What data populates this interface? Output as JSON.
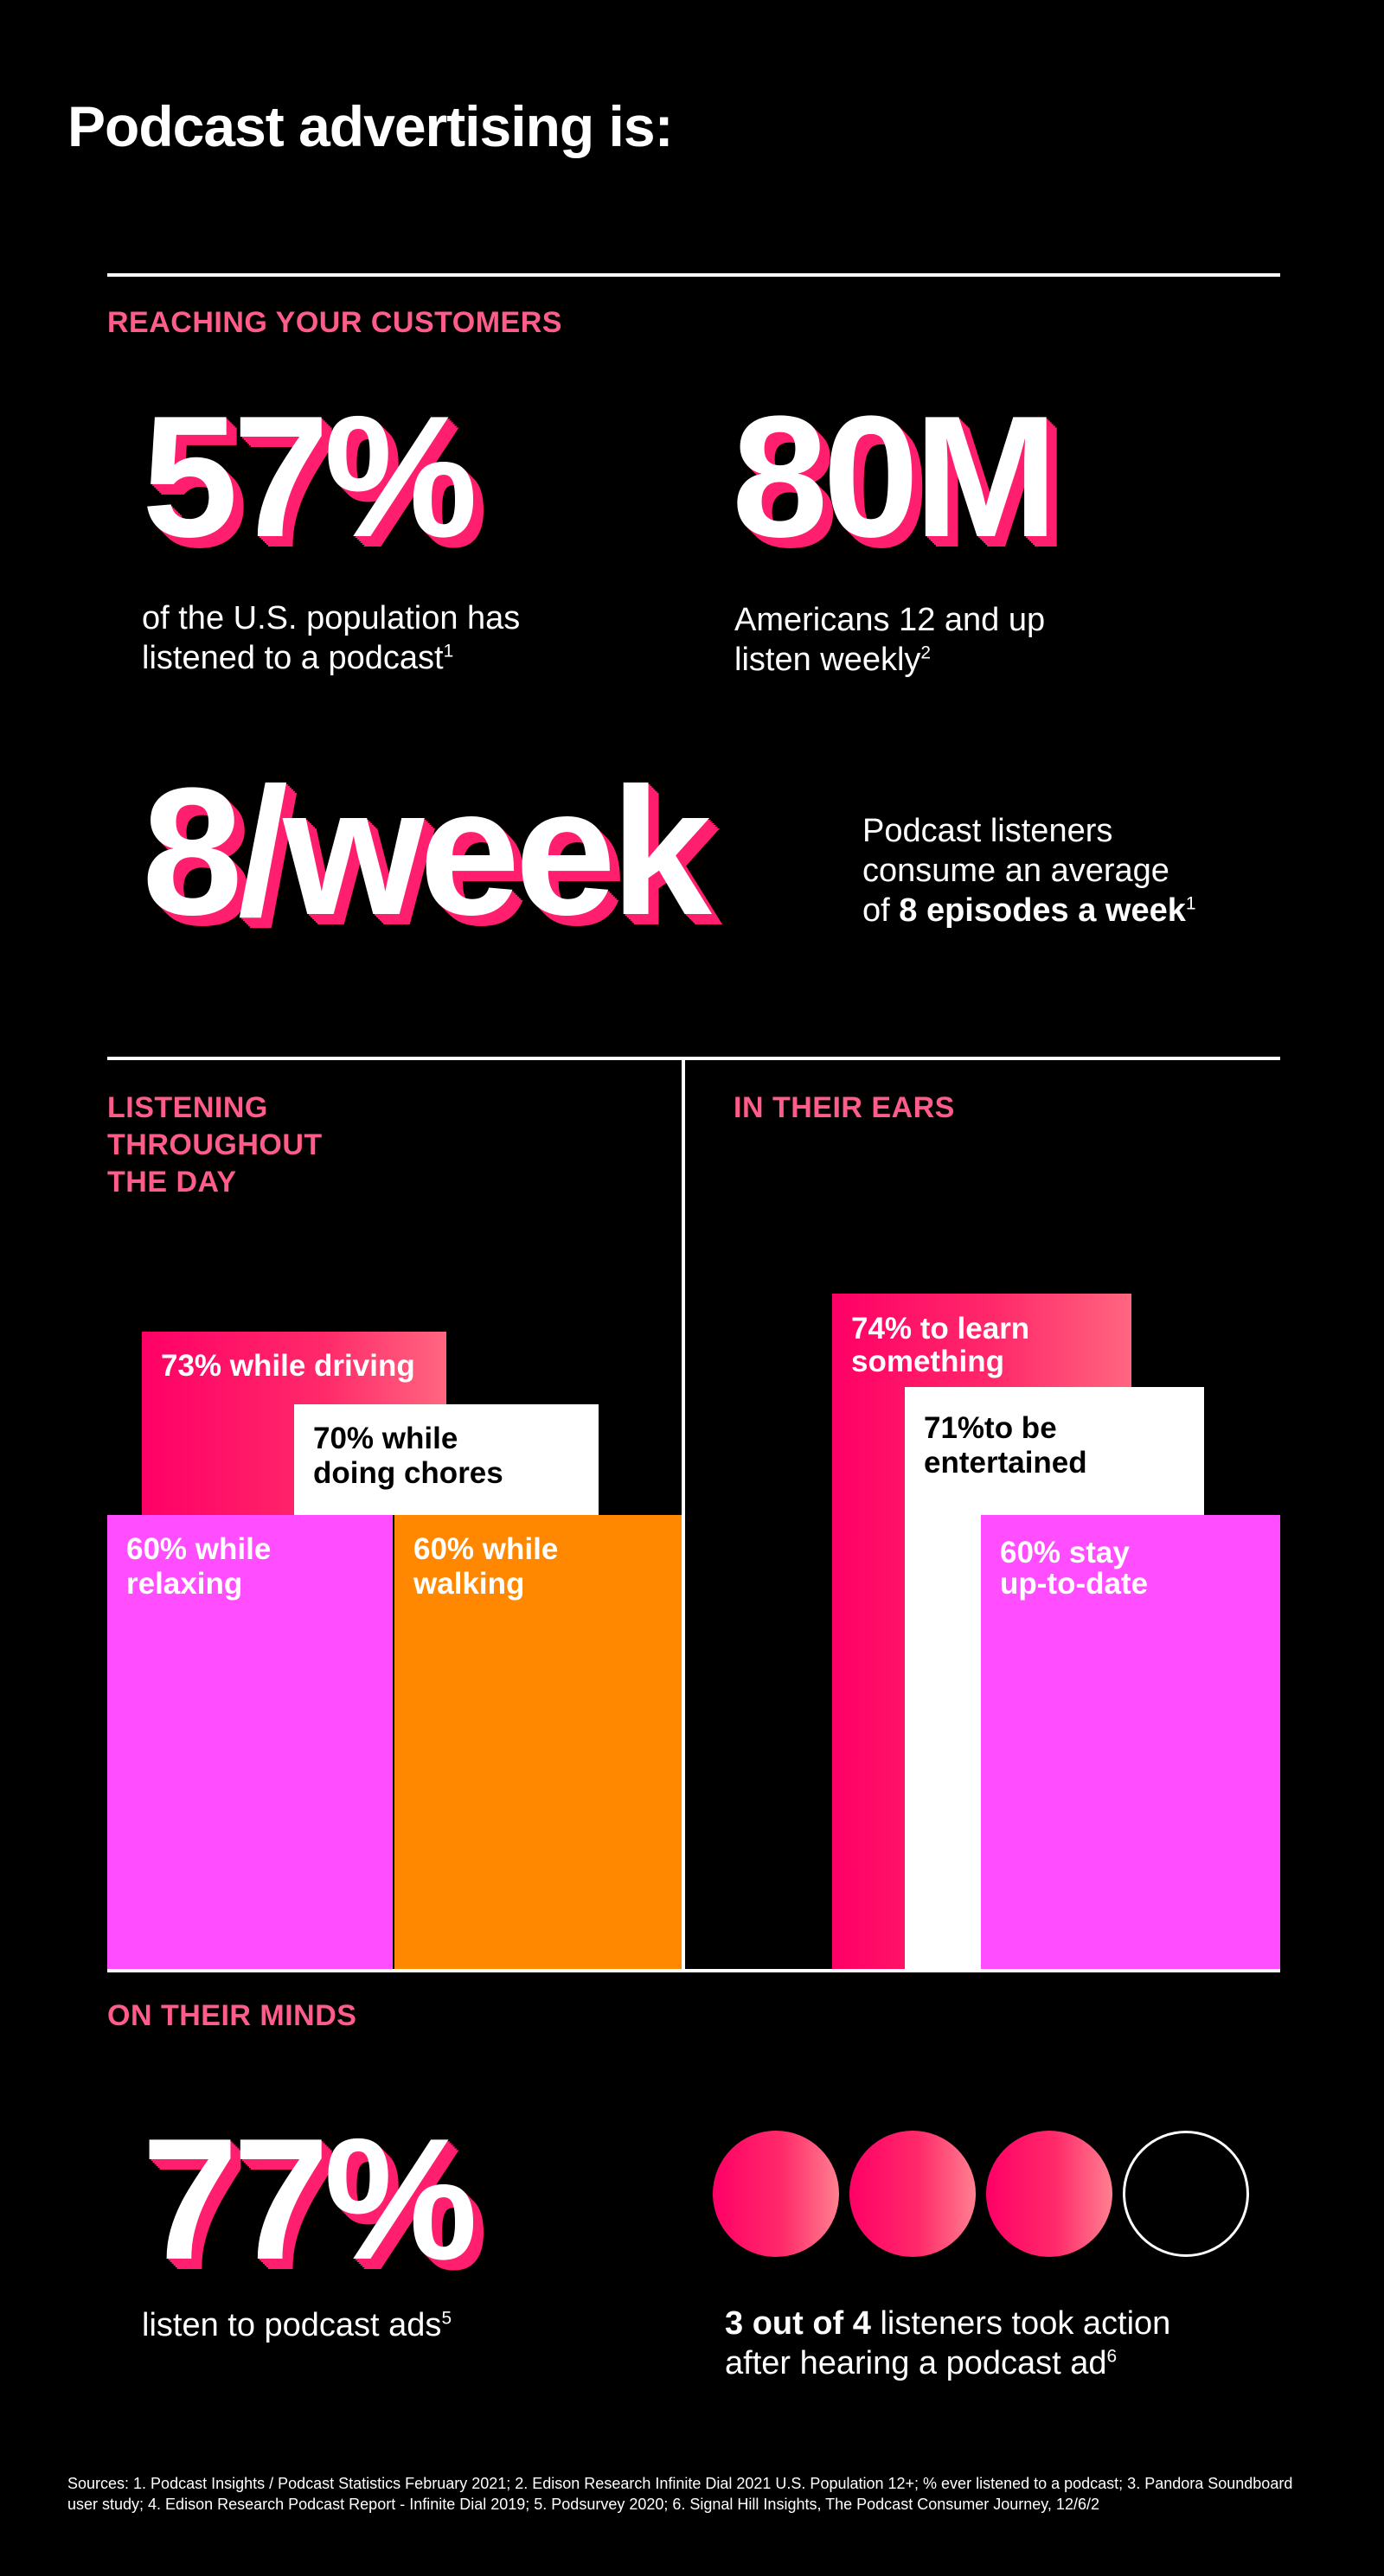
{
  "header": {
    "title": "Podcast advertising is:"
  },
  "reach": {
    "label": "REACHING YOUR CUSTOMERS",
    "stat1": {
      "value": "57%",
      "line1": "of the U.S. population has",
      "line2": "listened to a podcast",
      "sup": "1"
    },
    "stat2": {
      "value": "80M",
      "line1": "Americans 12 and up",
      "line2": "listen weekly",
      "sup": "2"
    },
    "stat3": {
      "value": "8/week",
      "line1": "Podcast listeners",
      "line2": "consume an average",
      "line3_pre": "of ",
      "line3_bold": "8 episodes a week",
      "sup": "1"
    }
  },
  "listening": {
    "label_lines": [
      "LISTENING",
      "THROUGHOUT",
      "THE DAY"
    ],
    "items": [
      {
        "pct": "73%",
        "text": "while driving",
        "value": 73
      },
      {
        "pct": "70%",
        "text_line1": "while",
        "text_line2": "doing chores",
        "value": 70
      },
      {
        "pct": "60%",
        "text_line1": "while",
        "text_line2": "relaxing",
        "value": 60
      },
      {
        "pct": "60%",
        "text_line1": "while",
        "text_line2": "walking",
        "value": 60
      }
    ]
  },
  "ears": {
    "label": "IN THEIR EARS",
    "items": [
      {
        "line1": "74% to learn",
        "line2": "something",
        "value": 74
      },
      {
        "line1": "71%to be",
        "line2": "entertained",
        "value": 71
      },
      {
        "line1": "60% stay",
        "line2": "up-to-date",
        "value": 60
      }
    ]
  },
  "minds": {
    "label": "ON THEIR MINDS",
    "stat": {
      "value": "77%",
      "line1": "listen to podcast ads",
      "sup": "5"
    },
    "action": {
      "bold": "3 out of 4",
      "rest1": " listeners took action",
      "line2": "after hearing a podcast ad",
      "sup": "6",
      "filled": 3,
      "total": 4
    }
  },
  "colors": {
    "accent": "#ff5c8a",
    "pink": "#ff0066",
    "magenta": "#ff4dff",
    "orange": "#ff8800",
    "white": "#ffffff",
    "black": "#000000"
  },
  "sources": "Sources: 1. Podcast Insights / Podcast Statistics February 2021; 2. Edison Research Infinite Dial 2021 U.S. Population 12+; % ever listened to a podcast; 3. Pandora Soundboard user study; 4. Edison Research Podcast Report - Infinite Dial 2019; 5. Podsurvey 2020; 6. Signal Hill Insights, The Podcast Consumer Journey, 12/6/2"
}
